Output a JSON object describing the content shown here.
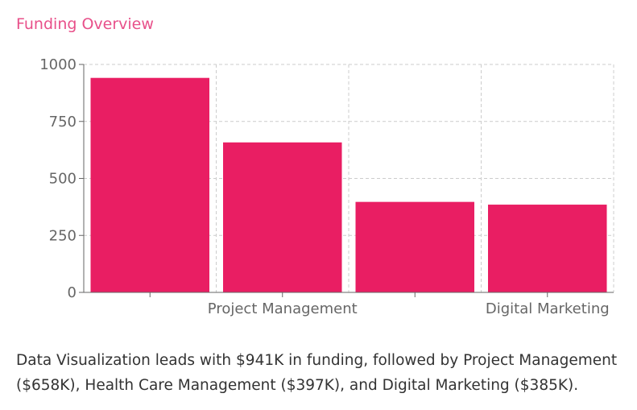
{
  "header": {
    "title": "Funding Overview"
  },
  "chart_data": {
    "type": "bar",
    "categories": [
      "Data Visualization",
      "Project Management",
      "Health Care Management",
      "Digital Marketing"
    ],
    "visible_category_labels": [
      "",
      "Project Management",
      "",
      "Digital Marketing"
    ],
    "values": [
      941,
      658,
      397,
      385
    ],
    "yticks": [
      "0",
      "250",
      "500",
      "750",
      "1000"
    ],
    "ylim": [
      0,
      1000
    ],
    "grid": true,
    "bar_color": "#e91e63"
  },
  "summary": {
    "text": "Data Visualization leads with $941K in funding, followed by Project Management ($658K), Health Care Management ($397K), and Digital Marketing ($385K)."
  }
}
